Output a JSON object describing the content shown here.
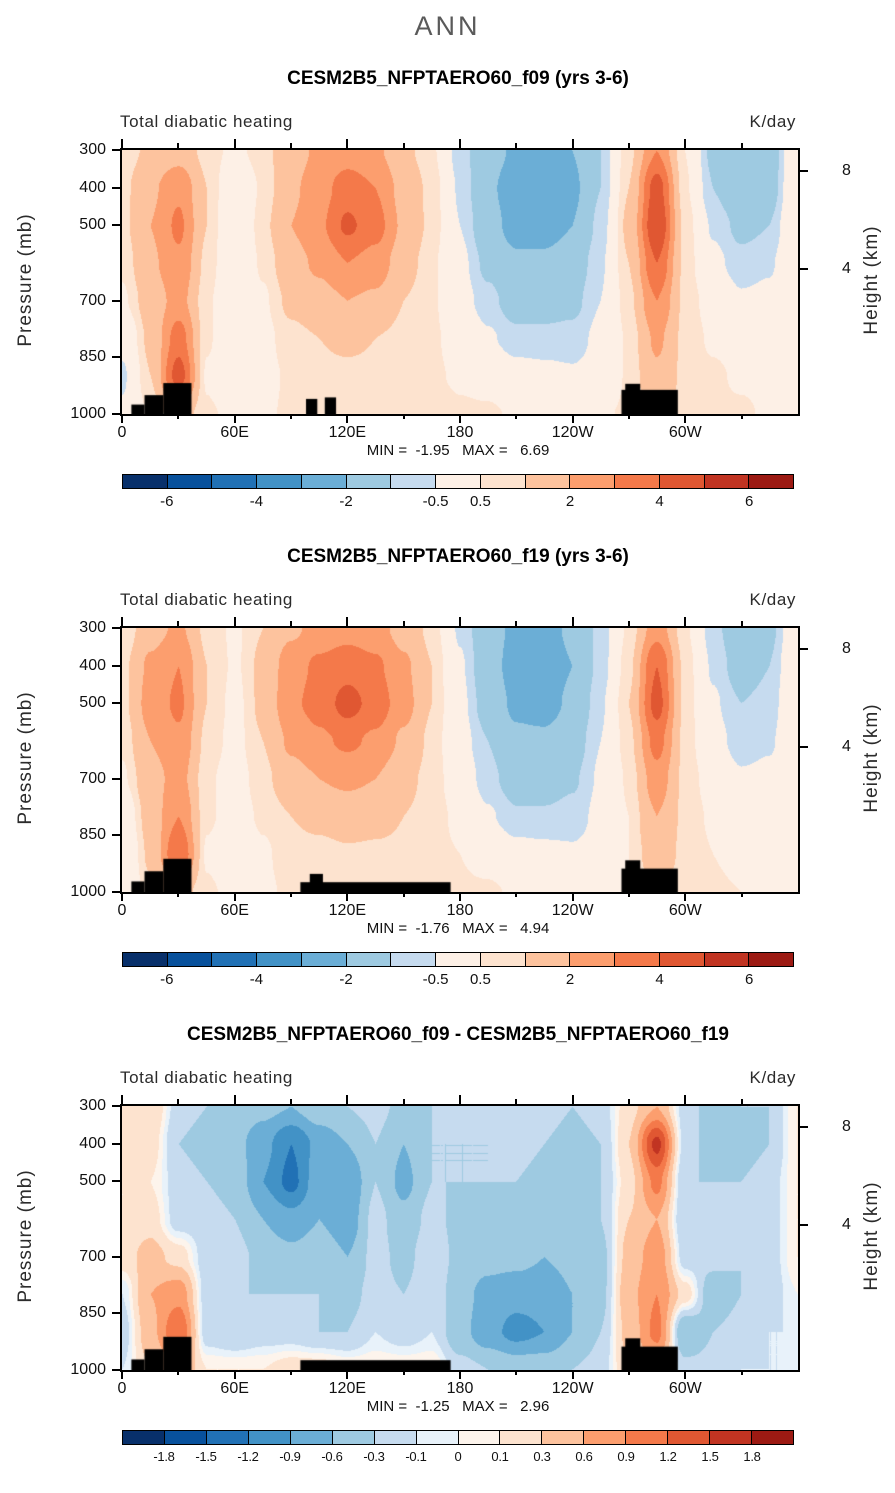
{
  "header": {
    "title": "ANN"
  },
  "axes": {
    "pressure_label": "Pressure (mb)",
    "height_label": "Height (km)",
    "pressure_range": [
      300,
      1000
    ],
    "lon_range": [
      0,
      360
    ],
    "pressure_ticks": [
      300,
      400,
      500,
      700,
      850,
      1000
    ],
    "lon_ticks": [
      {
        "value": 0,
        "label": "0"
      },
      {
        "value": 60,
        "label": "60E"
      },
      {
        "value": 120,
        "label": "120E"
      },
      {
        "value": 180,
        "label": "180"
      },
      {
        "value": 240,
        "label": "120W"
      },
      {
        "value": 300,
        "label": "60W"
      }
    ],
    "minor_lon_ticks": [
      30,
      90,
      150,
      210,
      270,
      330
    ],
    "height_ticks": [
      {
        "km": "8",
        "p": 356
      },
      {
        "km": "4",
        "p": 616
      }
    ]
  },
  "chart_data": [
    {
      "type": "heatmap",
      "title": "CESM2B5_NFPTAERO60_f09 (yrs 3-6)",
      "subtitle_left": "Total diabatic heating",
      "units": "K/day",
      "min": -1.95,
      "max": 6.69,
      "stats_text": "MIN =  -1.95   MAX =   6.69",
      "xlim": [
        0,
        360
      ],
      "ylim": [
        300,
        1000
      ],
      "lons": [
        0,
        15,
        30,
        45,
        60,
        75,
        90,
        105,
        120,
        135,
        150,
        165,
        180,
        195,
        210,
        225,
        240,
        255,
        270,
        285,
        300,
        315,
        330,
        345,
        360
      ],
      "pressures": [
        300,
        400,
        500,
        600,
        700,
        800,
        900,
        1000
      ],
      "values": [
        [
          0.6,
          1.2,
          1.5,
          0.8,
          0.3,
          0.8,
          1.5,
          2.2,
          2.5,
          2.2,
          1.2,
          0.6,
          -0.8,
          -1.5,
          -2.2,
          -2.4,
          -2.0,
          -1.0,
          0.8,
          3.0,
          0.5,
          -1.2,
          -1.8,
          -1.5,
          0.3
        ],
        [
          0.8,
          1.8,
          2.8,
          1.0,
          -0.3,
          0.6,
          1.8,
          2.6,
          3.5,
          3.0,
          1.6,
          0.8,
          -0.6,
          -1.8,
          -2.6,
          -2.6,
          -2.2,
          -1.0,
          1.0,
          4.5,
          0.6,
          -1.0,
          -1.8,
          -1.4,
          0.4
        ],
        [
          0.8,
          2.0,
          3.2,
          1.0,
          -0.5,
          0.8,
          2.0,
          2.8,
          4.2,
          3.4,
          1.8,
          0.8,
          -0.5,
          -1.6,
          -2.4,
          -2.4,
          -2.0,
          -0.8,
          1.2,
          5.0,
          0.8,
          -0.6,
          -1.2,
          -1.0,
          0.5
        ],
        [
          0.6,
          1.8,
          2.8,
          0.8,
          -0.3,
          0.6,
          1.6,
          2.2,
          3.0,
          2.6,
          1.4,
          0.6,
          -0.3,
          -1.2,
          -1.8,
          -1.8,
          -1.5,
          -0.6,
          1.0,
          4.0,
          0.8,
          -0.3,
          -0.8,
          -0.6,
          0.4
        ],
        [
          0.4,
          1.4,
          2.4,
          0.6,
          -0.2,
          0.4,
          1.2,
          1.6,
          2.0,
          1.8,
          1.0,
          0.6,
          -0.2,
          -0.8,
          -1.4,
          -1.4,
          -1.2,
          -0.5,
          0.8,
          3.0,
          0.8,
          0.2,
          -0.4,
          -0.3,
          0.3
        ],
        [
          -0.3,
          1.2,
          3.5,
          0.6,
          -0.3,
          0.3,
          0.8,
          1.0,
          1.2,
          1.0,
          0.8,
          0.6,
          0.2,
          -0.4,
          -0.8,
          -0.8,
          -0.8,
          -0.3,
          0.6,
          2.2,
          0.8,
          0.4,
          0.2,
          0.2,
          0.2
        ],
        [
          -0.6,
          1.0,
          4.5,
          0.4,
          -0.4,
          0.3,
          0.6,
          0.8,
          0.8,
          0.8,
          0.8,
          0.6,
          0.4,
          0.2,
          -0.2,
          -0.3,
          -0.4,
          -0.2,
          0.6,
          1.8,
          0.8,
          0.6,
          0.4,
          0.3,
          -0.2
        ],
        [
          -0.4,
          0.6,
          1.5,
          0.6,
          0.3,
          0.4,
          0.6,
          0.8,
          0.6,
          0.8,
          0.8,
          0.8,
          0.6,
          0.6,
          0.4,
          0.3,
          0.3,
          0.4,
          0.6,
          1.2,
          0.8,
          0.6,
          0.6,
          0.4,
          -0.3
        ]
      ],
      "terrain": [
        [
          5,
          12,
          975
        ],
        [
          12,
          22,
          950
        ],
        [
          22,
          37,
          918
        ],
        [
          98,
          104,
          960
        ],
        [
          108,
          114,
          956
        ],
        [
          266,
          296,
          936
        ],
        [
          268,
          276,
          920
        ]
      ],
      "contour_bounds": [
        -6,
        -5,
        -4,
        -3,
        -2,
        -1,
        -0.5,
        0.5,
        1,
        2,
        3,
        4,
        5,
        6
      ],
      "palette": [
        "#08306b",
        "#08519c",
        "#2171b5",
        "#4292c6",
        "#6baed6",
        "#9ecae1",
        "#c6dbef",
        "#fdf0e6",
        "#fde3cf",
        "#fdc39e",
        "#fc9e6e",
        "#f4794a",
        "#e05732",
        "#c13422",
        "#9c1a13"
      ],
      "colorbar_labels": [
        "-6",
        "-4",
        "-2",
        "-0.5",
        "0.5",
        "2",
        "4",
        "6"
      ],
      "colorbar_label_indices": [
        0,
        2,
        4,
        6,
        7,
        9,
        11,
        13
      ]
    },
    {
      "type": "heatmap",
      "title": "CESM2B5_NFPTAERO60_f19 (yrs 3-6)",
      "subtitle_left": "Total diabatic heating",
      "units": "K/day",
      "min": -1.76,
      "max": 4.94,
      "stats_text": "MIN =  -1.76   MAX =   4.94",
      "xlim": [
        0,
        360
      ],
      "ylim": [
        300,
        1000
      ],
      "lons": [
        0,
        15,
        30,
        45,
        60,
        75,
        90,
        105,
        120,
        135,
        150,
        165,
        180,
        195,
        210,
        225,
        240,
        255,
        270,
        285,
        300,
        315,
        330,
        345,
        360
      ],
      "pressures": [
        300,
        400,
        500,
        600,
        700,
        800,
        900,
        1000
      ],
      "values": [
        [
          0.5,
          1.6,
          2.2,
          0.8,
          0.4,
          1.0,
          1.8,
          2.4,
          2.6,
          2.4,
          1.6,
          0.8,
          -0.6,
          -1.6,
          -2.2,
          -2.4,
          -1.8,
          -0.8,
          0.6,
          2.6,
          0.6,
          -0.8,
          -1.6,
          -1.2,
          0.2
        ],
        [
          0.8,
          2.2,
          3.0,
          1.0,
          0.4,
          1.2,
          2.6,
          3.2,
          3.6,
          3.2,
          2.2,
          1.0,
          -0.4,
          -1.6,
          -2.4,
          -2.6,
          -2.0,
          -0.8,
          0.8,
          4.0,
          0.8,
          -0.6,
          -1.4,
          -1.0,
          0.4
        ],
        [
          0.8,
          2.4,
          3.2,
          1.0,
          0.3,
          1.2,
          2.8,
          3.4,
          4.4,
          3.6,
          2.4,
          1.0,
          -0.3,
          -1.4,
          -2.2,
          -2.4,
          -1.8,
          -0.6,
          1.0,
          4.4,
          0.8,
          -0.4,
          -1.0,
          -0.8,
          0.4
        ],
        [
          0.6,
          2.0,
          2.8,
          0.8,
          0.3,
          1.0,
          2.2,
          2.8,
          3.2,
          2.8,
          1.8,
          0.8,
          -0.2,
          -1.0,
          -1.8,
          -1.8,
          -1.4,
          -0.5,
          0.8,
          3.4,
          0.8,
          -0.2,
          -0.8,
          -0.6,
          0.3
        ],
        [
          0.4,
          1.6,
          2.4,
          0.6,
          0.2,
          0.8,
          1.6,
          2.0,
          2.2,
          2.0,
          1.2,
          0.8,
          0.0,
          -0.8,
          -1.4,
          -1.4,
          -1.1,
          -0.4,
          0.6,
          2.6,
          0.8,
          0.2,
          -0.4,
          -0.3,
          0.3
        ],
        [
          -0.2,
          1.4,
          3.0,
          0.6,
          0.2,
          0.6,
          1.0,
          1.2,
          1.4,
          1.2,
          1.0,
          0.8,
          0.3,
          -0.4,
          -0.9,
          -0.9,
          -0.8,
          -0.3,
          0.5,
          2.0,
          0.8,
          0.4,
          0.1,
          0.2,
          0.2
        ],
        [
          -0.5,
          1.2,
          4.0,
          0.4,
          -0.2,
          0.4,
          0.8,
          0.8,
          0.9,
          0.9,
          0.9,
          0.7,
          0.5,
          0.2,
          -0.2,
          -0.3,
          -0.4,
          -0.2,
          0.5,
          1.6,
          0.8,
          0.5,
          0.3,
          0.3,
          -0.2
        ],
        [
          -0.3,
          0.8,
          1.4,
          0.6,
          0.3,
          0.4,
          0.6,
          0.7,
          0.7,
          0.8,
          0.8,
          0.8,
          0.6,
          0.6,
          0.4,
          0.3,
          0.3,
          0.4,
          0.5,
          1.0,
          0.7,
          0.6,
          0.5,
          0.4,
          -0.2
        ]
      ],
      "terrain": [
        [
          5,
          12,
          972
        ],
        [
          12,
          22,
          945
        ],
        [
          22,
          37,
          912
        ],
        [
          95,
          175,
          974
        ],
        [
          100,
          107,
          952
        ],
        [
          266,
          296,
          938
        ],
        [
          268,
          276,
          916
        ]
      ],
      "contour_bounds": [
        -6,
        -5,
        -4,
        -3,
        -2,
        -1,
        -0.5,
        0.5,
        1,
        2,
        3,
        4,
        5,
        6
      ],
      "palette": [
        "#08306b",
        "#08519c",
        "#2171b5",
        "#4292c6",
        "#6baed6",
        "#9ecae1",
        "#c6dbef",
        "#fdf0e6",
        "#fde3cf",
        "#fdc39e",
        "#fc9e6e",
        "#f4794a",
        "#e05732",
        "#c13422",
        "#9c1a13"
      ],
      "colorbar_labels": [
        "-6",
        "-4",
        "-2",
        "-0.5",
        "0.5",
        "2",
        "4",
        "6"
      ],
      "colorbar_label_indices": [
        0,
        2,
        4,
        6,
        7,
        9,
        11,
        13
      ]
    },
    {
      "type": "heatmap",
      "title": "CESM2B5_NFPTAERO60_f09 - CESM2B5_NFPTAERO60_f19",
      "subtitle_left": "Total diabatic heating",
      "units": "K/day",
      "min": -1.25,
      "max": 2.96,
      "stats_text": "MIN =  -1.25   MAX =   2.96",
      "xlim": [
        0,
        360
      ],
      "ylim": [
        300,
        1000
      ],
      "lons": [
        0,
        15,
        30,
        45,
        60,
        75,
        90,
        105,
        120,
        135,
        150,
        165,
        180,
        195,
        210,
        225,
        240,
        255,
        270,
        285,
        300,
        315,
        330,
        345,
        360
      ],
      "pressures": [
        300,
        400,
        500,
        600,
        700,
        800,
        900,
        1000
      ],
      "values": [
        [
          0.2,
          0.3,
          -0.2,
          -0.3,
          -0.4,
          -0.5,
          -0.6,
          -0.4,
          -0.3,
          -0.2,
          -0.4,
          -0.3,
          -0.2,
          -0.2,
          -0.1,
          -0.2,
          -0.3,
          -0.2,
          0.2,
          0.6,
          -0.2,
          -0.4,
          -0.3,
          -0.3,
          0.1
        ],
        [
          0.1,
          0.2,
          -0.3,
          -0.4,
          -0.5,
          -0.8,
          -1.2,
          -0.8,
          -0.6,
          -0.3,
          -0.6,
          -0.3,
          -0.3,
          -0.3,
          -0.2,
          -0.3,
          -0.4,
          -0.3,
          0.3,
          1.6,
          -0.2,
          -0.4,
          -0.4,
          -0.3,
          0.1
        ],
        [
          0.1,
          0.1,
          -0.2,
          -0.3,
          -0.4,
          -0.9,
          -1.3,
          -0.7,
          -0.9,
          -0.3,
          -0.7,
          -0.3,
          -0.3,
          -0.3,
          -0.3,
          -0.4,
          -0.4,
          -0.3,
          0.2,
          1.0,
          -0.3,
          -0.3,
          -0.3,
          -0.2,
          0.1
        ],
        [
          0.1,
          0.2,
          -0.2,
          -0.2,
          -0.3,
          -0.6,
          -0.8,
          -0.6,
          -0.8,
          -0.2,
          -0.5,
          -0.2,
          -0.4,
          -0.4,
          -0.4,
          -0.5,
          -0.4,
          -0.3,
          0.3,
          0.6,
          -0.3,
          -0.2,
          -0.3,
          -0.2,
          0.1
        ],
        [
          0.2,
          0.4,
          0.2,
          -0.2,
          -0.2,
          -0.4,
          -0.5,
          -0.4,
          -0.6,
          -0.2,
          -0.4,
          -0.1,
          -0.4,
          -0.5,
          -0.5,
          -0.6,
          -0.5,
          -0.4,
          0.4,
          0.8,
          -0.2,
          -0.2,
          -0.3,
          -0.2,
          0.1
        ],
        [
          -0.1,
          0.6,
          0.8,
          -0.2,
          -0.3,
          -0.3,
          -0.3,
          -0.3,
          -0.4,
          -0.2,
          -0.3,
          -0.1,
          -0.5,
          -0.7,
          -0.8,
          -0.8,
          -0.6,
          -0.4,
          0.5,
          0.9,
          0.2,
          -0.5,
          -0.3,
          -0.2,
          0.0
        ],
        [
          -0.2,
          0.5,
          1.2,
          -0.2,
          -0.3,
          -0.2,
          -0.2,
          -0.3,
          -0.3,
          -0.1,
          -0.2,
          -0.1,
          -0.5,
          -0.8,
          -1.0,
          -0.9,
          -0.6,
          -0.3,
          0.4,
          1.0,
          -0.6,
          -0.3,
          -0.2,
          -0.1,
          -0.1
        ],
        [
          -0.1,
          0.3,
          0.6,
          0.1,
          0.1,
          0.1,
          0.2,
          0.2,
          0.1,
          0.1,
          0.1,
          0.1,
          -0.2,
          -0.3,
          -0.4,
          -0.4,
          -0.3,
          -0.2,
          0.3,
          0.5,
          -0.2,
          -0.2,
          -0.1,
          -0.1,
          -0.1
        ]
      ],
      "terrain": [
        [
          5,
          12,
          972
        ],
        [
          12,
          22,
          945
        ],
        [
          22,
          37,
          912
        ],
        [
          95,
          175,
          974
        ],
        [
          266,
          296,
          938
        ],
        [
          268,
          276,
          916
        ]
      ],
      "contour_bounds": [
        -1.8,
        -1.5,
        -1.2,
        -0.9,
        -0.6,
        -0.3,
        -0.1,
        0,
        0.1,
        0.3,
        0.6,
        0.9,
        1.2,
        1.5,
        1.8
      ],
      "palette": [
        "#08306b",
        "#08519c",
        "#2171b5",
        "#4292c6",
        "#6baed6",
        "#9ecae1",
        "#c6dbef",
        "#e8f2fa",
        "#fdf4ec",
        "#fde3cf",
        "#fdc39e",
        "#fc9e6e",
        "#f4794a",
        "#e05732",
        "#c13422",
        "#9c1a13"
      ],
      "colorbar_labels": [
        "-1.8",
        "-1.5",
        "-1.2",
        "-0.9",
        "-0.6",
        "-0.3",
        "-0.1",
        "0",
        "0.1",
        "0.3",
        "0.6",
        "0.9",
        "1.2",
        "1.5",
        "1.8"
      ],
      "colorbar_label_indices": [
        0,
        1,
        2,
        3,
        4,
        5,
        6,
        7,
        8,
        9,
        10,
        11,
        12,
        13,
        14
      ]
    }
  ]
}
